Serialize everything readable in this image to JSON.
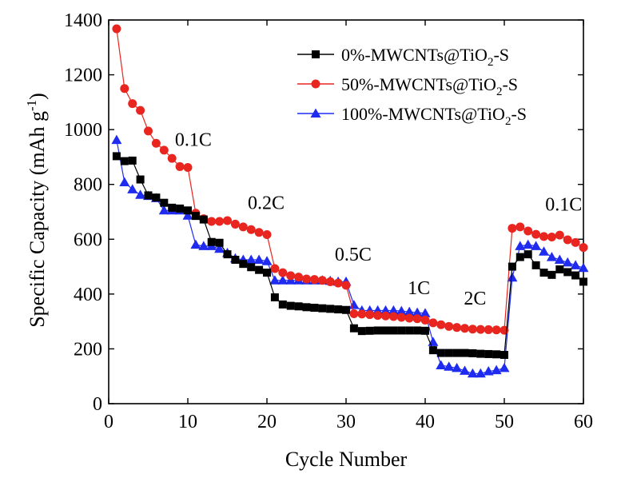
{
  "chart_data": {
    "type": "line",
    "xlabel": "Cycle Number",
    "ylabel": {
      "prefix": "Specific Capacity (mAh g",
      "superscript": "-1",
      "suffix": ")"
    },
    "xlim": [
      0,
      60
    ],
    "ylim": [
      0,
      1400
    ],
    "xticks": [
      0,
      10,
      20,
      30,
      40,
      50,
      60
    ],
    "yticks": [
      0,
      200,
      400,
      600,
      800,
      1000,
      1200,
      1400
    ],
    "grid": false,
    "legend_position": "top-right",
    "x": [
      1,
      2,
      3,
      4,
      5,
      6,
      7,
      8,
      9,
      10,
      11,
      12,
      13,
      14,
      15,
      16,
      17,
      18,
      19,
      20,
      21,
      22,
      23,
      24,
      25,
      26,
      27,
      28,
      29,
      30,
      31,
      32,
      33,
      34,
      35,
      36,
      37,
      38,
      39,
      40,
      41,
      42,
      43,
      44,
      45,
      46,
      47,
      48,
      49,
      50,
      51,
      52,
      53,
      54,
      55,
      56,
      57,
      58,
      59,
      60
    ],
    "series": [
      {
        "name": "0%-MWCNTs@TiO2-S",
        "legend": {
          "pre": "0%-MWCNTs@TiO",
          "sub": "2",
          "post": "-S"
        },
        "color": "#000000",
        "marker": "square",
        "values": [
          903,
          885,
          887,
          818,
          760,
          752,
          733,
          715,
          712,
          705,
          685,
          672,
          590,
          587,
          545,
          525,
          510,
          498,
          488,
          478,
          388,
          362,
          357,
          355,
          352,
          350,
          348,
          346,
          344,
          342,
          275,
          265,
          266,
          267,
          267,
          267,
          267,
          267,
          267,
          266,
          195,
          185,
          185,
          185,
          185,
          184,
          182,
          181,
          180,
          178,
          500,
          535,
          545,
          505,
          478,
          470,
          490,
          480,
          468,
          445
        ]
      },
      {
        "name": "50%-MWCNTs@TiO2-S",
        "legend": {
          "pre": "50%-MWCNTs@TiO",
          "sub": "2",
          "post": "-S"
        },
        "color": "#e8251e",
        "marker": "circle",
        "values": [
          1368,
          1150,
          1095,
          1070,
          995,
          950,
          925,
          895,
          865,
          862,
          695,
          675,
          665,
          665,
          668,
          655,
          645,
          635,
          625,
          617,
          493,
          478,
          467,
          462,
          455,
          453,
          450,
          445,
          440,
          432,
          328,
          327,
          325,
          322,
          320,
          318,
          315,
          312,
          310,
          305,
          295,
          288,
          282,
          278,
          275,
          272,
          271,
          270,
          269,
          268,
          640,
          645,
          630,
          618,
          610,
          608,
          615,
          598,
          588,
          570
        ]
      },
      {
        "name": "100%-MWCNTs@TiO2-S",
        "legend": {
          "pre": "100%-MWCNTs@TiO",
          "sub": "2",
          "post": "-S"
        },
        "color": "#1f2cf0",
        "marker": "triangle",
        "values": [
          962,
          808,
          782,
          762,
          758,
          750,
          705,
          705,
          705,
          686,
          580,
          575,
          575,
          565,
          550,
          530,
          525,
          525,
          525,
          520,
          450,
          450,
          450,
          450,
          450,
          450,
          450,
          448,
          445,
          445,
          360,
          340,
          340,
          340,
          340,
          340,
          338,
          335,
          332,
          330,
          225,
          140,
          135,
          130,
          120,
          110,
          110,
          118,
          122,
          130,
          460,
          575,
          580,
          575,
          555,
          535,
          525,
          515,
          505,
          495
        ]
      }
    ],
    "annotations": [
      {
        "text": "0.1C",
        "x": 10.7,
        "y": 940
      },
      {
        "text": "0.2C",
        "x": 19.9,
        "y": 710
      },
      {
        "text": "0.5C",
        "x": 30.9,
        "y": 522
      },
      {
        "text": "1C",
        "x": 39.2,
        "y": 400
      },
      {
        "text": "2C",
        "x": 46.3,
        "y": 362
      },
      {
        "text": "0.1C",
        "x": 57.5,
        "y": 705
      }
    ]
  }
}
